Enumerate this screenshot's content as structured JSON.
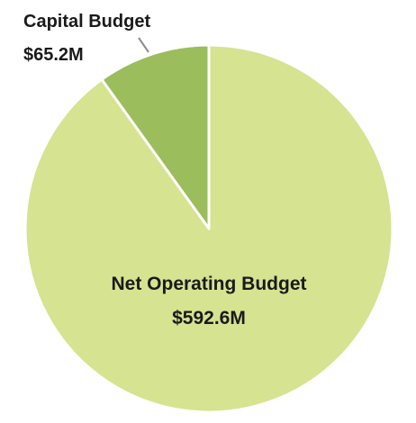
{
  "chart_data": {
    "type": "pie",
    "slices": [
      {
        "label": "Net Operating Budget",
        "value_label": "$592.6M",
        "value": 592.6,
        "color": "#d6e391"
      },
      {
        "label": "Capital Budget",
        "value_label": "$65.2M",
        "value": 65.2,
        "color": "#9bbd5b"
      }
    ],
    "units": "$M",
    "title": "",
    "legend": "none",
    "slice_border_color": "#ffffff",
    "leader_line_color": "#8c8c8c"
  }
}
